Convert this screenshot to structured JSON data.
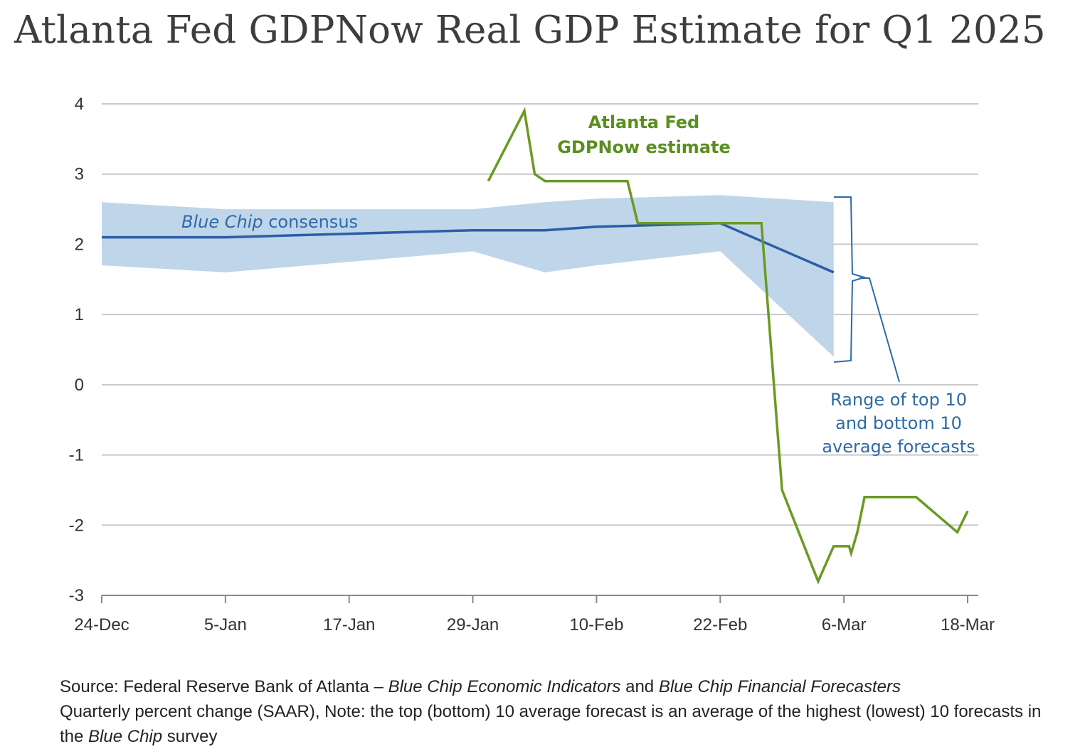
{
  "title": "Atlanta Fed GDPNow Real GDP Estimate for Q1 2025",
  "chart_data": {
    "type": "line",
    "title": "Atlanta Fed GDPNow Real GDP Estimate for Q1 2025",
    "xlabel": "",
    "ylabel": "",
    "ylim": [
      -3,
      4
    ],
    "yticks": [
      4,
      3,
      2,
      1,
      0,
      -1,
      -2,
      -3
    ],
    "xtick_labels": [
      "24-Dec",
      "5-Jan",
      "17-Jan",
      "29-Jan",
      "10-Feb",
      "22-Feb",
      "6-Mar",
      "18-Mar"
    ],
    "x_unit": "days since 24-Dec",
    "x_tick_values": [
      0,
      12,
      24,
      36,
      48,
      60,
      72,
      84
    ],
    "series": [
      {
        "name": "Atlanta Fed GDPNow estimate",
        "color": "#6a9a23",
        "x": [
          37.5,
          41.0,
          42.0,
          43.0,
          51.0,
          52.0,
          63.8,
          64.0,
          66.0,
          69.5,
          71.0,
          71.5,
          72.5,
          72.7,
          73.3,
          74.0,
          79.0,
          83.0,
          84.0
        ],
        "values": [
          2.9,
          3.9,
          3.0,
          2.9,
          2.9,
          2.3,
          2.3,
          2.3,
          -1.5,
          -2.8,
          -2.3,
          -2.3,
          -2.3,
          -2.4,
          -2.1,
          -1.6,
          -1.6,
          -2.1,
          -1.8
        ]
      },
      {
        "name": "Blue Chip consensus",
        "color": "#2b5ea8",
        "x": [
          0,
          12,
          24,
          36,
          43,
          48,
          60,
          71
        ],
        "values": [
          2.1,
          2.1,
          2.15,
          2.2,
          2.2,
          2.25,
          2.3,
          1.6
        ]
      },
      {
        "name": "Range of top 10 and bottom 10 average forecasts",
        "color": "#bcd3e8",
        "type": "area",
        "x": [
          0,
          12,
          24,
          36,
          43,
          48,
          60,
          71
        ],
        "upper": [
          2.6,
          2.5,
          2.5,
          2.5,
          2.6,
          2.65,
          2.7,
          2.6
        ],
        "lower": [
          1.7,
          1.6,
          1.75,
          1.9,
          1.6,
          1.7,
          1.9,
          0.4
        ]
      }
    ],
    "annotations": {
      "gdpnow_label": [
        "Atlanta Fed",
        "GDPNow estimate"
      ],
      "consensus_label_italic": "Blue Chip",
      "consensus_label_rest": " consensus",
      "range_label": [
        "Range of top 10",
        "and bottom 10",
        "average forecasts"
      ]
    }
  },
  "footer": {
    "line1_a": "Source: Federal Reserve Bank of Atlanta – ",
    "line1_b": "Blue Chip Economic Indicators",
    "line1_c": " and ",
    "line1_d": "Blue Chip Financial Forecasters",
    "line2": "Quarterly percent change (SAAR), Note: the top (bottom) 10 average forecast is an average of the highest (lowest) 10 forecasts in",
    "line3_a": "the ",
    "line3_b": "Blue Chip",
    "line3_c": " survey"
  }
}
